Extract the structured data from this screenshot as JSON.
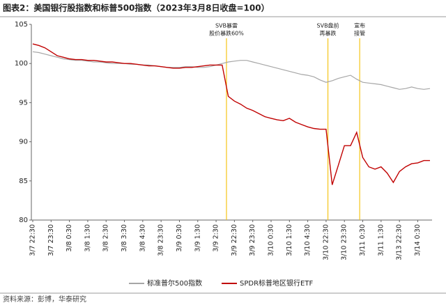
{
  "chart_data": {
    "type": "line",
    "title": "图表2：美国银行股指数和标普500指数（2023年3月8日收盘=100）",
    "source": "资料来源：彭博，华泰研究",
    "categories": [
      "3/7 22:30",
      null,
      null,
      "3/7 23:30",
      null,
      null,
      "3/8 0:30",
      null,
      null,
      "3/8 1:30",
      null,
      null,
      "3/8 2:30",
      null,
      null,
      "3/8 3:30",
      null,
      null,
      "3/8 4:30",
      null,
      null,
      "3/8 23:30",
      null,
      null,
      "3/9 0:30",
      null,
      null,
      "3/9 1:30",
      null,
      null,
      "3/9 2:30",
      null,
      null,
      "3/9 22:30",
      null,
      null,
      "3/9 23:30",
      null,
      null,
      "3/10 0:30",
      null,
      null,
      "3/10 1:30",
      null,
      null,
      "3/10 4:30",
      null,
      null,
      "3/10 22:30",
      null,
      null,
      "3/10 23:30",
      null,
      null,
      "3/11 0:30",
      null,
      null,
      "3/11 1:30",
      null,
      null,
      "3/13 22:30",
      null,
      null,
      "3/14 0:30",
      null,
      null
    ],
    "series": [
      {
        "name": "标准普尔500指数",
        "color": "#a6a6a6",
        "values": [
          101.5,
          101.4,
          101.2,
          101.0,
          100.8,
          100.6,
          100.5,
          100.4,
          100.4,
          100.3,
          100.2,
          100.2,
          100.1,
          100.0,
          100.0,
          100.0,
          99.9,
          99.9,
          99.8,
          99.8,
          99.7,
          99.6,
          99.5,
          99.5,
          99.5,
          99.6,
          99.6,
          99.5,
          99.5,
          99.6,
          99.8,
          100.0,
          100.2,
          100.3,
          100.4,
          100.4,
          100.2,
          100.0,
          99.8,
          99.6,
          99.4,
          99.2,
          99.0,
          98.8,
          98.6,
          98.5,
          98.3,
          97.9,
          97.6,
          97.8,
          98.1,
          98.3,
          98.5,
          98.0,
          97.6,
          97.5,
          97.4,
          97.3,
          97.1,
          96.9,
          96.7,
          96.8,
          97.0,
          96.8,
          96.7,
          96.8
        ]
      },
      {
        "name": "SPDR标普地区银行ETF",
        "color": "#c00000",
        "values": [
          102.5,
          102.3,
          102.0,
          101.5,
          101.0,
          100.8,
          100.6,
          100.5,
          100.5,
          100.4,
          100.4,
          100.3,
          100.2,
          100.2,
          100.1,
          100.0,
          100.0,
          99.9,
          99.8,
          99.7,
          99.7,
          99.6,
          99.5,
          99.4,
          99.4,
          99.5,
          99.5,
          99.6,
          99.7,
          99.8,
          99.8,
          99.8,
          95.8,
          95.2,
          94.8,
          94.3,
          94.0,
          93.6,
          93.2,
          93.0,
          92.8,
          92.7,
          93.0,
          92.5,
          92.2,
          91.9,
          91.7,
          91.6,
          91.6,
          84.5,
          87.0,
          89.5,
          89.5,
          91.2,
          88.0,
          86.8,
          86.5,
          86.8,
          86.0,
          84.8,
          86.2,
          86.8,
          87.2,
          87.3,
          87.6,
          87.6
        ]
      }
    ],
    "annotations": [
      {
        "text": [
          "SVB暴雷",
          "股价暴跌60%"
        ]
      },
      {
        "text": [
          "SVB盘前",
          "再暴跌"
        ]
      },
      {
        "text": [
          "宣布",
          "接管"
        ]
      }
    ],
    "ylim": [
      80,
      105
    ],
    "yticks": [
      80,
      85,
      90,
      95,
      100,
      105
    ]
  }
}
